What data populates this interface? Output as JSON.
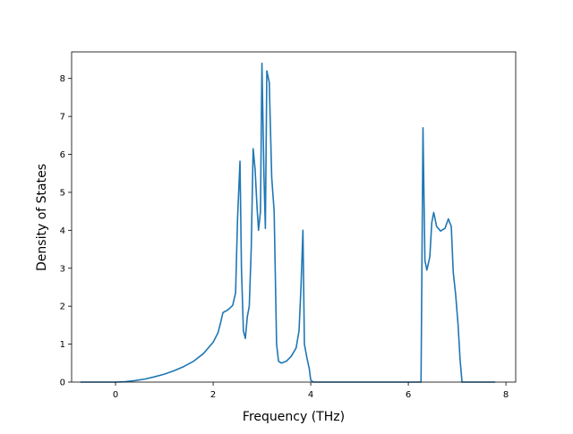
{
  "chart_data": {
    "type": "line",
    "title": "",
    "xlabel": "Frequency (THz)",
    "ylabel": "Density of States",
    "xlim": [
      -0.9,
      8.2
    ],
    "ylim": [
      0,
      8.7
    ],
    "grid": false,
    "legend": "none",
    "x_ticks": [
      0,
      2,
      4,
      6,
      8
    ],
    "y_ticks": [
      0,
      1,
      2,
      3,
      4,
      5,
      6,
      7,
      8
    ],
    "series": [
      {
        "color": "#1f77b4",
        "points": [
          [
            -0.72,
            0.0
          ],
          [
            -0.3,
            0.0
          ],
          [
            0.0,
            0.0
          ],
          [
            0.2,
            0.01
          ],
          [
            0.4,
            0.04
          ],
          [
            0.6,
            0.08
          ],
          [
            0.8,
            0.14
          ],
          [
            1.0,
            0.21
          ],
          [
            1.2,
            0.3
          ],
          [
            1.4,
            0.41
          ],
          [
            1.6,
            0.55
          ],
          [
            1.8,
            0.75
          ],
          [
            2.0,
            1.05
          ],
          [
            2.1,
            1.3
          ],
          [
            2.15,
            1.55
          ],
          [
            2.2,
            1.83
          ],
          [
            2.3,
            1.9
          ],
          [
            2.4,
            2.02
          ],
          [
            2.46,
            2.35
          ],
          [
            2.5,
            4.3
          ],
          [
            2.55,
            5.82
          ],
          [
            2.58,
            3.0
          ],
          [
            2.62,
            1.35
          ],
          [
            2.66,
            1.15
          ],
          [
            2.7,
            1.72
          ],
          [
            2.74,
            2.0
          ],
          [
            2.78,
            3.5
          ],
          [
            2.82,
            6.15
          ],
          [
            2.86,
            5.6
          ],
          [
            2.9,
            4.6
          ],
          [
            2.93,
            4.0
          ],
          [
            2.97,
            4.5
          ],
          [
            3.0,
            8.4
          ],
          [
            3.04,
            5.5
          ],
          [
            3.07,
            4.05
          ],
          [
            3.1,
            8.2
          ],
          [
            3.15,
            7.9
          ],
          [
            3.2,
            5.4
          ],
          [
            3.25,
            4.5
          ],
          [
            3.3,
            1.0
          ],
          [
            3.34,
            0.55
          ],
          [
            3.4,
            0.5
          ],
          [
            3.5,
            0.55
          ],
          [
            3.6,
            0.68
          ],
          [
            3.7,
            0.9
          ],
          [
            3.76,
            1.35
          ],
          [
            3.8,
            2.5
          ],
          [
            3.84,
            4.0
          ],
          [
            3.87,
            1.0
          ],
          [
            3.92,
            0.65
          ],
          [
            3.97,
            0.35
          ],
          [
            4.0,
            0.05
          ],
          [
            4.05,
            0.0
          ],
          [
            5.0,
            0.0
          ],
          [
            6.0,
            0.0
          ],
          [
            6.26,
            0.0
          ],
          [
            6.3,
            6.7
          ],
          [
            6.34,
            3.2
          ],
          [
            6.38,
            2.95
          ],
          [
            6.44,
            3.3
          ],
          [
            6.48,
            4.2
          ],
          [
            6.52,
            4.47
          ],
          [
            6.58,
            4.1
          ],
          [
            6.66,
            3.98
          ],
          [
            6.75,
            4.05
          ],
          [
            6.82,
            4.3
          ],
          [
            6.88,
            4.1
          ],
          [
            6.92,
            2.9
          ],
          [
            6.97,
            2.3
          ],
          [
            7.02,
            1.5
          ],
          [
            7.06,
            0.6
          ],
          [
            7.1,
            0.0
          ],
          [
            7.5,
            0.0
          ],
          [
            7.78,
            0.0
          ]
        ]
      }
    ]
  }
}
